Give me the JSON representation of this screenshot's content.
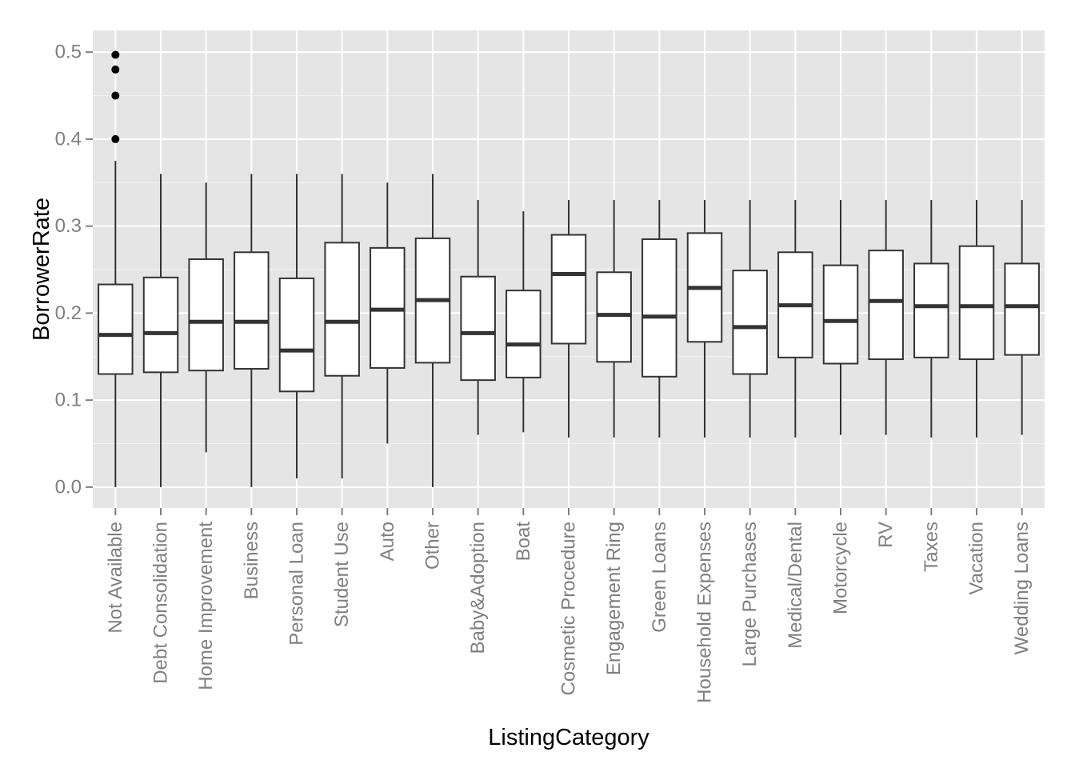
{
  "chart_data": {
    "type": "box",
    "xlabel": "ListingCategory",
    "ylabel": "BorrowerRate",
    "ylim": [
      -0.024,
      0.525
    ],
    "y_ticks": [
      "0.0",
      "0.1",
      "0.2",
      "0.3",
      "0.4",
      "0.5"
    ],
    "y_tick_values": [
      0.0,
      0.1,
      0.2,
      0.3,
      0.4,
      0.5
    ],
    "grid": true,
    "colors": {
      "panel_background": "#e5e5e5",
      "grid_major": "#ffffff",
      "grid_minor": "#f2f2f2",
      "box_fill": "#ffffff",
      "box_stroke": "#333333",
      "tick_label": "#7f7f7f",
      "axis_title": "#000000"
    },
    "categories": [
      "Not Available",
      "Debt Consolidation",
      "Home Improvement",
      "Business",
      "Personal Loan",
      "Student Use",
      "Auto",
      "Other",
      "Baby&Adoption",
      "Boat",
      "Cosmetic Procedure",
      "Engagement Ring",
      "Green Loans",
      "Household Expenses",
      "Large Purchases",
      "Medical/Dental",
      "Motorcycle",
      "RV",
      "Taxes",
      "Vacation",
      "Wedding Loans"
    ],
    "boxes": [
      {
        "category": "Not Available",
        "min": 0.0,
        "q1": 0.13,
        "median": 0.175,
        "q3": 0.233,
        "max": 0.375,
        "outliers": [
          0.4,
          0.45,
          0.48,
          0.497
        ]
      },
      {
        "category": "Debt Consolidation",
        "min": 0.0,
        "q1": 0.132,
        "median": 0.177,
        "q3": 0.241,
        "max": 0.36,
        "outliers": []
      },
      {
        "category": "Home Improvement",
        "min": 0.04,
        "q1": 0.134,
        "median": 0.19,
        "q3": 0.262,
        "max": 0.35,
        "outliers": []
      },
      {
        "category": "Business",
        "min": 0.0,
        "q1": 0.136,
        "median": 0.19,
        "q3": 0.27,
        "max": 0.36,
        "outliers": []
      },
      {
        "category": "Personal Loan",
        "min": 0.01,
        "q1": 0.11,
        "median": 0.157,
        "q3": 0.24,
        "max": 0.36,
        "outliers": []
      },
      {
        "category": "Student Use",
        "min": 0.01,
        "q1": 0.128,
        "median": 0.19,
        "q3": 0.281,
        "max": 0.36,
        "outliers": []
      },
      {
        "category": "Auto",
        "min": 0.05,
        "q1": 0.137,
        "median": 0.204,
        "q3": 0.275,
        "max": 0.35,
        "outliers": []
      },
      {
        "category": "Other",
        "min": 0.0,
        "q1": 0.143,
        "median": 0.215,
        "q3": 0.286,
        "max": 0.36,
        "outliers": []
      },
      {
        "category": "Baby&Adoption",
        "min": 0.06,
        "q1": 0.123,
        "median": 0.177,
        "q3": 0.242,
        "max": 0.33,
        "outliers": []
      },
      {
        "category": "Boat",
        "min": 0.063,
        "q1": 0.126,
        "median": 0.164,
        "q3": 0.226,
        "max": 0.317,
        "outliers": []
      },
      {
        "category": "Cosmetic Procedure",
        "min": 0.057,
        "q1": 0.165,
        "median": 0.245,
        "q3": 0.29,
        "max": 0.33,
        "outliers": []
      },
      {
        "category": "Engagement Ring",
        "min": 0.057,
        "q1": 0.144,
        "median": 0.198,
        "q3": 0.247,
        "max": 0.33,
        "outliers": []
      },
      {
        "category": "Green Loans",
        "min": 0.057,
        "q1": 0.127,
        "median": 0.196,
        "q3": 0.285,
        "max": 0.33,
        "outliers": []
      },
      {
        "category": "Household Expenses",
        "min": 0.057,
        "q1": 0.167,
        "median": 0.229,
        "q3": 0.292,
        "max": 0.33,
        "outliers": []
      },
      {
        "category": "Large Purchases",
        "min": 0.057,
        "q1": 0.13,
        "median": 0.184,
        "q3": 0.249,
        "max": 0.33,
        "outliers": []
      },
      {
        "category": "Medical/Dental",
        "min": 0.057,
        "q1": 0.149,
        "median": 0.209,
        "q3": 0.27,
        "max": 0.33,
        "outliers": []
      },
      {
        "category": "Motorcycle",
        "min": 0.06,
        "q1": 0.142,
        "median": 0.191,
        "q3": 0.255,
        "max": 0.33,
        "outliers": []
      },
      {
        "category": "RV",
        "min": 0.06,
        "q1": 0.147,
        "median": 0.214,
        "q3": 0.272,
        "max": 0.33,
        "outliers": []
      },
      {
        "category": "Taxes",
        "min": 0.057,
        "q1": 0.149,
        "median": 0.208,
        "q3": 0.257,
        "max": 0.33,
        "outliers": []
      },
      {
        "category": "Vacation",
        "min": 0.057,
        "q1": 0.147,
        "median": 0.208,
        "q3": 0.277,
        "max": 0.33,
        "outliers": []
      },
      {
        "category": "Wedding Loans",
        "min": 0.06,
        "q1": 0.152,
        "median": 0.208,
        "q3": 0.257,
        "max": 0.33,
        "outliers": []
      }
    ]
  }
}
